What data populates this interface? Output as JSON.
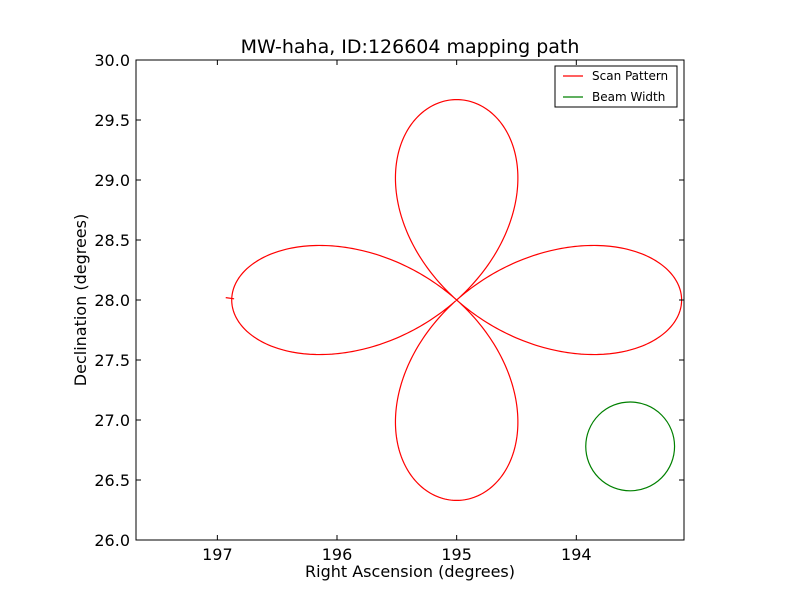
{
  "chart_data": {
    "type": "line",
    "title": "MW-haha, ID:126604 mapping path",
    "xlabel": "Right Ascension (degrees)",
    "ylabel": "Declination (degrees)",
    "xlim": [
      197.68,
      193.1
    ],
    "ylim": [
      26.0,
      30.0
    ],
    "x_axis_inverted": true,
    "x_ticks": [
      197,
      196,
      195,
      194
    ],
    "y_ticks": [
      26.0,
      26.5,
      27.0,
      27.5,
      28.0,
      28.5,
      29.0,
      29.5,
      30.0
    ],
    "grid": false,
    "legend_position": "top-right",
    "series": [
      {
        "name": "Scan Pattern",
        "color": "#ff0000",
        "shape": "four-lobed scan path",
        "center": [
          195.0,
          28.0
        ],
        "lobe_extent_ra": 1.88,
        "lobe_extent_dec": 1.67,
        "start_segment": [
          [
            196.86,
            28.01
          ],
          [
            196.93,
            28.02
          ]
        ]
      },
      {
        "name": "Beam Width",
        "color": "#008000",
        "shape": "circle",
        "center": [
          193.55,
          26.78
        ],
        "radius_dec": 0.37
      }
    ]
  }
}
